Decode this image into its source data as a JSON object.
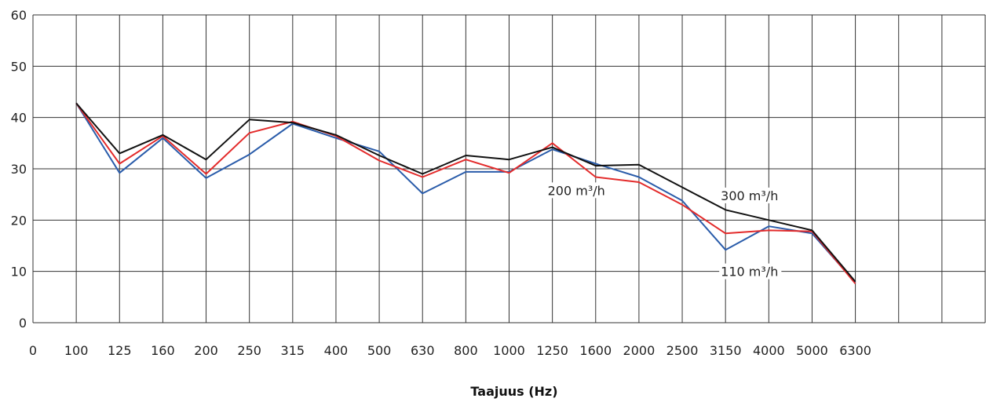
{
  "chart_data": {
    "type": "line",
    "title": "",
    "xlabel": "Taajuus (Hz)",
    "ylabel": "",
    "categories": [
      "0",
      "100",
      "125",
      "160",
      "200",
      "250",
      "315",
      "400",
      "500",
      "630",
      "800",
      "1000",
      "1250",
      "1600",
      "2000",
      "2500",
      "3150",
      "4000",
      "5000",
      "6300",
      "",
      "",
      ""
    ],
    "ylim": [
      0,
      60
    ],
    "yticks": [
      "0",
      "10",
      "20",
      "30",
      "40",
      "50",
      "60"
    ],
    "grid": true,
    "series": [
      {
        "name": "110 m³/h",
        "color": "#2a5caa",
        "values": [
          null,
          42.8,
          29.2,
          36.0,
          28.2,
          32.8,
          38.8,
          36.0,
          33.4,
          25.2,
          29.4,
          29.4,
          33.8,
          31.0,
          28.4,
          23.8,
          14.2,
          18.8,
          17.4,
          7.8,
          null,
          null,
          null
        ]
      },
      {
        "name": "200 m³/h",
        "color": "#e32b2b",
        "values": [
          null,
          42.8,
          31.0,
          36.4,
          29.0,
          37.0,
          39.2,
          36.4,
          31.6,
          28.4,
          31.8,
          29.2,
          35.0,
          28.4,
          27.4,
          23.0,
          17.4,
          18.0,
          17.8,
          7.6,
          null,
          null,
          null
        ]
      },
      {
        "name": "300 m³/h",
        "color": "#111111",
        "values": [
          null,
          42.8,
          33.0,
          36.6,
          31.8,
          39.6,
          39.0,
          36.6,
          32.6,
          29.0,
          32.6,
          31.8,
          34.2,
          30.6,
          30.8,
          26.4,
          22.0,
          20.0,
          18.0,
          8.0,
          null,
          null,
          null
        ]
      }
    ],
    "annotations": [
      {
        "text": "200 m³/h",
        "x": "1250",
        "y": 25.2
      },
      {
        "text": "300 m³/h",
        "x": "3150",
        "y": 24.2
      },
      {
        "text": "110 m³/h",
        "x": "3150",
        "y": 9.4
      }
    ]
  }
}
